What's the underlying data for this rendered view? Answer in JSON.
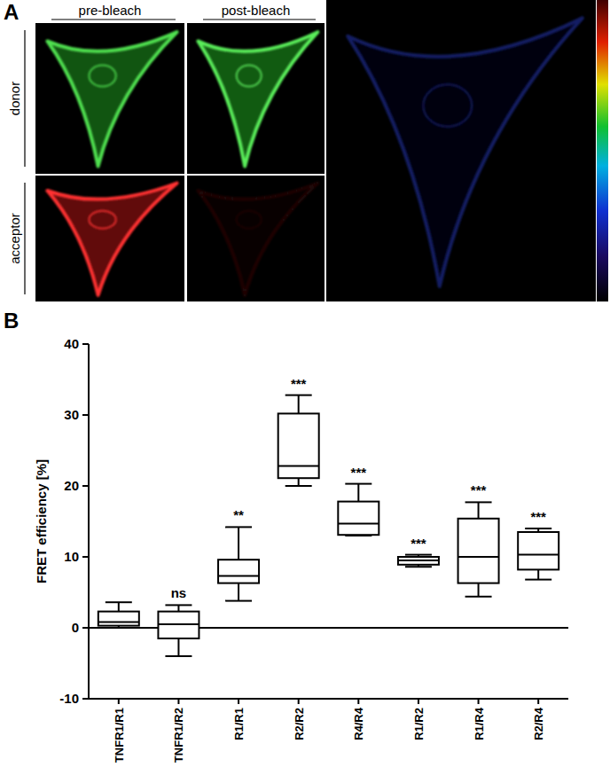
{
  "panel_labels": [
    "A",
    "B"
  ],
  "image_panel": {
    "column_labels": [
      "pre-bleach",
      "post-bleach"
    ],
    "row_labels": [
      "donor",
      "acceptor"
    ]
  },
  "chart_data": {
    "type": "box",
    "categories": [
      "TNFR1/R1",
      "TNFR1/R2",
      "R1/R1",
      "R2/R2",
      "R4/R4",
      "R1/R2",
      "R1/R4",
      "R2/R4"
    ],
    "min": [
      0,
      -4,
      3.8,
      20,
      13,
      8.6,
      4.4,
      6.8
    ],
    "q1": [
      0.3,
      -1.5,
      6.3,
      21.1,
      13.1,
      8.9,
      6.3,
      8.2
    ],
    "median": [
      0.8,
      0.5,
      7.3,
      22.8,
      14.7,
      9.5,
      10,
      10.3
    ],
    "q3": [
      2.3,
      2.3,
      9.6,
      30.2,
      17.8,
      10,
      15.4,
      13.5
    ],
    "max": [
      3.6,
      3.2,
      14.2,
      32.8,
      20.3,
      10.3,
      17.7,
      14
    ],
    "significance": [
      null,
      "ns",
      "**",
      "***",
      "***",
      "***",
      "***",
      "***"
    ],
    "reference_line": 0,
    "y_label": "FRET efficiency [%]",
    "ylim": [
      -10,
      40
    ],
    "yticks": [
      -10,
      0,
      10,
      20,
      30,
      40
    ],
    "color": "#000000",
    "grid": false
  }
}
